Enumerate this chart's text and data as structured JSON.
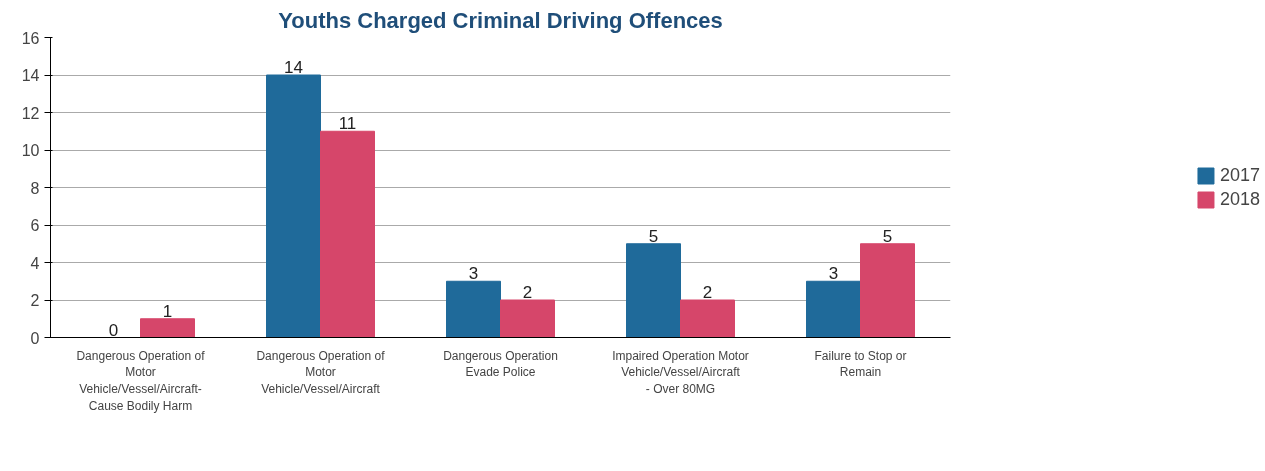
{
  "chart_data": {
    "type": "bar",
    "title": "Youths Charged Criminal Driving Offences",
    "categories": [
      "Dangerous Operation of Motor Vehicle/Vessel/Aircraft- Cause Bodily Harm",
      "Dangerous Operation of Motor Vehicle/Vessel/Aircraft",
      "Dangerous Operation Evade Police",
      "Impaired Operation Motor Vehicle/Vessel/Aircraft - Over 80MG",
      "Failure to Stop or Remain"
    ],
    "series": [
      {
        "name": "2017",
        "color": "#1f6a9a",
        "values": [
          0,
          14,
          3,
          5,
          3
        ]
      },
      {
        "name": "2018",
        "color": "#d6466a",
        "values": [
          1,
          11,
          2,
          2,
          5
        ]
      }
    ],
    "ylim": [
      0,
      16
    ],
    "yticks": [
      0,
      2,
      4,
      6,
      8,
      10,
      12,
      14,
      16
    ],
    "grid": "y",
    "legend": "right",
    "data_labels": true
  }
}
